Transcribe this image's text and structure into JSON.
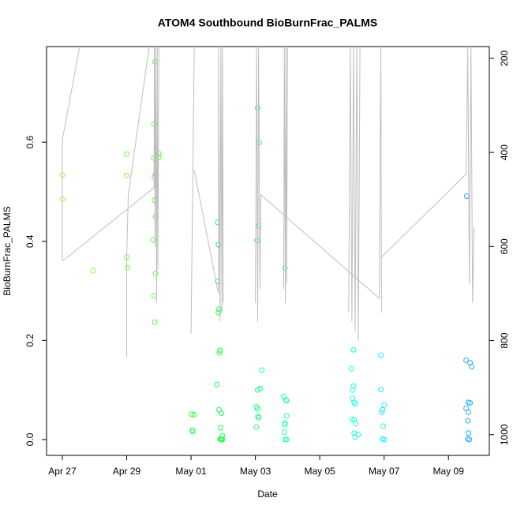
{
  "chart_data": {
    "type": "scatter",
    "title": "ATOM4 Southbound BioBurnFrac_PALMS",
    "xlabel": "Date",
    "ylabel": "BioBurnFrac_PALMS",
    "xlim": [
      -0.49,
      13.27
    ],
    "xticks": [
      {
        "value": 0,
        "label": "Apr 27"
      },
      {
        "value": 2,
        "label": "Apr 29"
      },
      {
        "value": 4,
        "label": "May 01"
      },
      {
        "value": 6,
        "label": "May 03"
      },
      {
        "value": 8,
        "label": "May 05"
      },
      {
        "value": 10,
        "label": "May 07"
      },
      {
        "value": 12,
        "label": "May 09"
      }
    ],
    "ylim": [
      -0.032,
      0.793
    ],
    "yticks": [
      {
        "value": 0,
        "label": "0.0"
      },
      0.2,
      0.4,
      0.6
    ],
    "y2lim": [
      1044,
      175
    ],
    "y2ticks": [
      200,
      400,
      600,
      800,
      1000
    ],
    "grid": false,
    "series": [
      {
        "color": "#99ff33",
        "x": [
          0,
          0
        ],
        "values": [
          0.534,
          0.485
        ]
      },
      {
        "color": "#88ff33",
        "x": [
          0.96
        ],
        "values": [
          0.341
        ]
      },
      {
        "color": "#77ff33",
        "x": [
          2.0,
          2.0,
          2.0,
          2.03
        ],
        "values": [
          0.576,
          0.533,
          0.368,
          0.347
        ]
      },
      {
        "color": "#55ff33",
        "x": [
          2.88,
          2.85,
          2.85,
          3.0,
          2.99,
          2.9,
          2.87,
          2.87,
          2.9,
          2.83,
          2.9,
          2.85,
          2.87
        ],
        "values": [
          0.762,
          0.637,
          0.568,
          0.577,
          0.57,
          0.535,
          0.53,
          0.483,
          0.45,
          0.403,
          0.335,
          0.29,
          0.237
        ]
      },
      {
        "color": "#33ff44",
        "x": [
          4.03,
          4.1,
          4.05,
          4.05
        ],
        "values": [
          0.051,
          0.05,
          0.019,
          0.016
        ]
      },
      {
        "color": "#22ff55",
        "x": [
          4.83,
          4.85,
          4.83,
          4.87,
          4.85,
          4.9,
          4.88,
          4.8,
          4.87,
          4.95,
          4.92,
          4.97,
          4.9,
          4.95,
          4.98,
          4.93
        ],
        "values": [
          0.438,
          0.393,
          0.319,
          0.263,
          0.256,
          0.18,
          0.175,
          0.111,
          0.06,
          0.053,
          0.024,
          0.008,
          0.001,
          0,
          0,
          0
        ]
      },
      {
        "color": "#22ff88",
        "x": [
          6.07,
          6.12,
          6.1,
          6.05,
          6.2,
          6.15,
          6.07,
          6.03,
          6.07,
          6.08,
          6.1,
          6.03
        ],
        "values": [
          0.669,
          0.599,
          0.431,
          0.402,
          0.14,
          0.103,
          0.1,
          0.066,
          0.062,
          0.047,
          0.044,
          0.025
        ]
      },
      {
        "color": "#22ffaa",
        "x": [
          6.92,
          6.88,
          6.95,
          6.97,
          6.97,
          6.92,
          6.92,
          6.9,
          6.93,
          6.97
        ],
        "values": [
          0.346,
          0.087,
          0.08,
          0.078,
          0.048,
          0.034,
          0.03,
          0.015,
          0,
          0
        ]
      },
      {
        "color": "#22ffdd",
        "x": [
          9.05,
          8.98,
          9.05,
          9.02,
          9.02,
          9.07,
          9.1,
          9.0,
          9.07,
          9.12,
          9.07,
          9.2,
          9.1
        ],
        "values": [
          0.181,
          0.143,
          0.108,
          0.1,
          0.083,
          0.075,
          0.072,
          0.041,
          0.04,
          0.032,
          0.013,
          0.01,
          0.005
        ]
      },
      {
        "color": "#22eeff",
        "x": [
          9.9,
          9.9,
          10.0,
          9.95,
          9.93,
          9.97,
          9.95,
          10.0
        ],
        "values": [
          0.17,
          0.101,
          0.07,
          0.06,
          0.055,
          0.027,
          0.001,
          0
        ]
      },
      {
        "color": "#22aaff",
        "x": [
          12.57,
          12.55,
          12.67,
          12.72,
          12.62,
          12.67,
          12.55,
          12.62,
          12.6,
          12.62,
          12.6,
          12.65
        ],
        "values": [
          0.491,
          0.16,
          0.155,
          0.147,
          0.075,
          0.074,
          0.063,
          0.055,
          0.038,
          0.013,
          0.001,
          0
        ]
      },
      {
        "type": "line",
        "axis": "y2",
        "color": "#bebebe",
        "x": [
          0,
          0,
          0.54,
          null,
          0.02,
          2.85,
          2.86,
          2.88,
          2.9,
          2.93,
          2.95,
          2.97,
          3.0,
          null,
          2.0,
          2.0,
          2.05,
          2.7,
          null,
          4.0,
          4.1,
          null,
          4.1,
          4.85,
          4.86,
          4.9,
          4.93,
          4.96,
          4.98,
          5.0,
          null,
          6.0,
          6.04,
          6.07,
          6.1,
          6.14,
          6.17,
          9.85,
          9.9,
          9.92,
          null,
          6.88,
          6.9,
          6.93,
          6.95,
          6.97,
          7.0,
          null,
          8.9,
          8.95,
          9.0,
          9.05,
          9.1,
          9.15,
          9.2,
          9.25,
          null,
          9.9,
          12.55,
          12.6,
          12.65,
          12.7,
          12.75,
          12.8
        ],
        "values": [
          630,
          373,
          175,
          null,
          630,
          475,
          175,
          600,
          175,
          720,
          175,
          650,
          175,
          null,
          835,
          620,
          490,
          175,
          null,
          785,
          175,
          null,
          438,
          700,
          175,
          760,
          175,
          740,
          175,
          720,
          null,
          720,
          175,
          760,
          175,
          690,
          490,
          710,
          175,
          740,
          null,
          690,
          175,
          720,
          175,
          680,
          175,
          null,
          740,
          175,
          760,
          175,
          780,
          175,
          800,
          175,
          null,
          624,
          446,
          175,
          680,
          175,
          720,
          560
        ]
      }
    ]
  }
}
